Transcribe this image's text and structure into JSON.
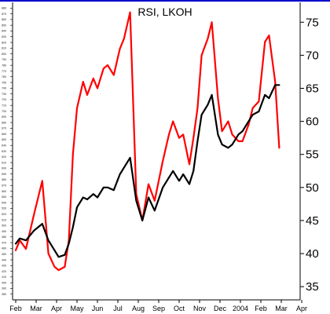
{
  "chart_data": {
    "type": "line",
    "title": "RSI, LKOH",
    "xlabel": "",
    "ylabel": "",
    "categories": [
      "Feb",
      "Mar",
      "Apr",
      "May",
      "Jun",
      "Jul",
      "Aug",
      "Sep",
      "Oct",
      "Nov",
      "Dec",
      "2004",
      "Feb",
      "Mar",
      "Apr"
    ],
    "right_axis": {
      "ticks": [
        35,
        40,
        45,
        50,
        55,
        60,
        65,
        70,
        75
      ],
      "ylim": [
        33,
        78
      ]
    },
    "left_axis": {
      "ticks": [
        "380",
        "390",
        "400",
        "410",
        "420",
        "430",
        "440",
        "450",
        "460",
        "470",
        "480",
        "490",
        "500",
        "510",
        "520",
        "530",
        "540",
        "550",
        "560",
        "570",
        "580",
        "590",
        "600",
        "610",
        "620",
        "630",
        "640",
        "650",
        "660",
        "670",
        "680",
        "690",
        "700",
        "710",
        "720",
        "730",
        "740",
        "750",
        "760",
        "770",
        "780",
        "790",
        "800",
        "810",
        "820",
        "830",
        "840",
        "850",
        "860",
        "870",
        "880"
      ],
      "ylim": [
        370,
        890
      ]
    },
    "grid": false,
    "legend": "none",
    "colors": {
      "frame_top": "#0000cc",
      "red_series": "#ff0000",
      "black_series": "#000000"
    },
    "series": [
      {
        "color": "#ff0000",
        "x": [
          0.0,
          0.2,
          0.5,
          0.9,
          1.3,
          1.6,
          1.9,
          2.1,
          2.4,
          2.6,
          2.8,
          3.0,
          3.3,
          3.5,
          3.8,
          4.0,
          4.3,
          4.5,
          4.8,
          5.1,
          5.3,
          5.6,
          5.9,
          6.2,
          6.5,
          6.8,
          7.2,
          7.5,
          7.7,
          8.0,
          8.2,
          8.5,
          8.7,
          8.9,
          9.1,
          9.4,
          9.6,
          9.9,
          10.1,
          10.4,
          10.6,
          10.9,
          11.1,
          11.4,
          11.6,
          11.9,
          12.2,
          12.4,
          12.7,
          12.9
        ],
        "values": [
          40.5,
          42.0,
          40.7,
          46.0,
          51.0,
          40.0,
          38.0,
          37.5,
          38.0,
          42.0,
          55.0,
          62.0,
          66.0,
          64.0,
          66.5,
          65.0,
          68.0,
          68.5,
          67.0,
          71.0,
          72.5,
          76.5,
          49.0,
          45.0,
          50.5,
          48.0,
          54.0,
          58.0,
          60.0,
          57.5,
          58.0,
          53.5,
          57.5,
          62.0,
          70.0,
          72.5,
          75.0,
          63.5,
          58.5,
          60.0,
          58.0,
          57.0,
          57.0,
          59.5,
          62.0,
          63.0,
          72.0,
          73.0,
          66.0,
          56.0
        ]
      },
      {
        "color": "#000000",
        "x": [
          0.0,
          0.2,
          0.5,
          0.9,
          1.3,
          1.6,
          1.9,
          2.1,
          2.4,
          2.6,
          2.8,
          3.0,
          3.3,
          3.5,
          3.8,
          4.0,
          4.3,
          4.5,
          4.8,
          5.1,
          5.3,
          5.6,
          5.9,
          6.2,
          6.5,
          6.8,
          7.2,
          7.5,
          7.7,
          8.0,
          8.2,
          8.5,
          8.7,
          8.9,
          9.1,
          9.4,
          9.6,
          9.9,
          10.1,
          10.4,
          10.6,
          10.9,
          11.1,
          11.4,
          11.6,
          11.9,
          12.2,
          12.4,
          12.7,
          12.9
        ],
        "values": [
          41.5,
          42.3,
          42.0,
          43.5,
          44.5,
          42.0,
          40.5,
          39.5,
          39.8,
          41.5,
          44.0,
          47.0,
          48.5,
          48.2,
          49.0,
          48.5,
          50.0,
          50.0,
          49.6,
          52.0,
          53.0,
          54.5,
          48.0,
          45.0,
          48.5,
          46.5,
          50.0,
          51.5,
          52.5,
          51.0,
          52.0,
          50.5,
          52.5,
          57.0,
          61.0,
          62.5,
          64.0,
          58.0,
          56.5,
          56.0,
          56.5,
          58.0,
          58.5,
          60.0,
          61.0,
          61.5,
          64.0,
          63.5,
          65.5,
          65.5
        ]
      }
    ]
  }
}
